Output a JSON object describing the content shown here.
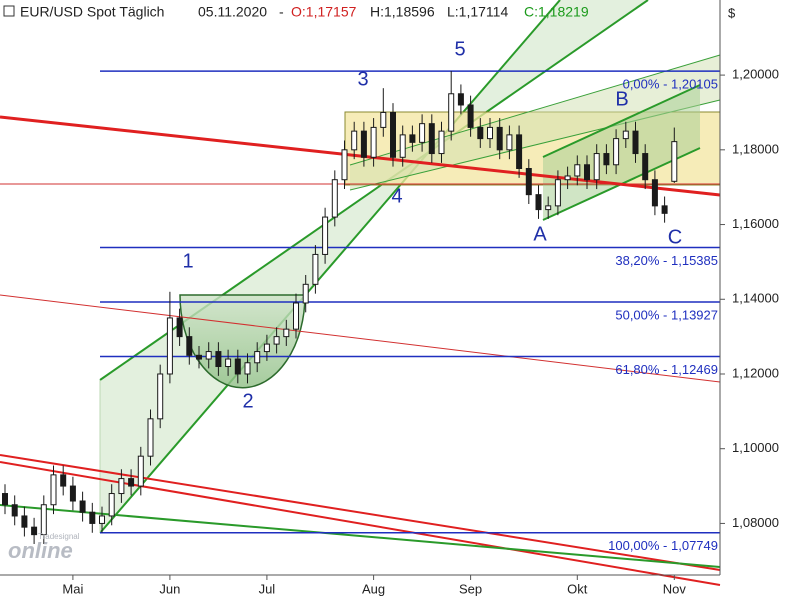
{
  "chart_data": {
    "type": "candlestick",
    "title": "EUR/USD Spot Täglich",
    "date": "05.11.2020",
    "quote_labels": [
      "O:1,17157",
      "H:1,18596",
      "L:1,17114",
      "C:1,18219"
    ],
    "currency": "$",
    "watermark": [
      "Tradesignal",
      "online"
    ],
    "up_color": "#ffffff",
    "down_color": "#1a1a1a",
    "fib_color": "#1f2fbf",
    "wave_color": "#1f2fa8",
    "categories": [
      null,
      null,
      null,
      null,
      null,
      null,
      null,
      "Mai",
      null,
      null,
      null,
      null,
      null,
      null,
      null,
      null,
      null,
      "Jun",
      null,
      null,
      null,
      null,
      null,
      null,
      null,
      null,
      null,
      "Jul",
      null,
      null,
      null,
      null,
      null,
      null,
      null,
      null,
      null,
      null,
      "Aug",
      null,
      null,
      null,
      null,
      null,
      null,
      null,
      null,
      null,
      "Sep",
      null,
      null,
      null,
      null,
      null,
      null,
      null,
      null,
      null,
      null,
      "Okt",
      null,
      null,
      null,
      null,
      null,
      null,
      null,
      null,
      null,
      "Nov"
    ],
    "open": [
      1.088,
      1.085,
      1.082,
      1.079,
      1.077,
      1.085,
      1.093,
      1.09,
      1.086,
      1.083,
      1.08,
      1.082,
      1.088,
      1.092,
      1.09,
      1.098,
      1.108,
      1.12,
      1.135,
      1.13,
      1.125,
      1.124,
      1.126,
      1.122,
      1.124,
      1.12,
      1.123,
      1.126,
      1.128,
      1.13,
      1.132,
      1.139,
      1.144,
      1.152,
      1.162,
      1.172,
      1.18,
      1.185,
      1.178,
      1.186,
      1.19,
      1.178,
      1.184,
      1.182,
      1.187,
      1.179,
      1.185,
      1.195,
      1.192,
      1.186,
      1.183,
      1.186,
      1.18,
      1.184,
      1.175,
      1.168,
      1.164,
      1.165,
      1.172,
      1.173,
      1.176,
      1.172,
      1.179,
      1.176,
      1.183,
      1.185,
      1.179,
      1.172,
      1.165,
      1.17157
    ],
    "high": [
      1.0905,
      1.0875,
      1.0845,
      1.0815,
      1.0875,
      1.0955,
      1.0955,
      1.0925,
      1.0885,
      1.0855,
      1.0845,
      1.0905,
      1.0945,
      1.0945,
      1.1005,
      1.1105,
      1.1225,
      1.142,
      1.1375,
      1.1325,
      1.1275,
      1.1285,
      1.1285,
      1.1265,
      1.1265,
      1.1255,
      1.1285,
      1.1305,
      1.1325,
      1.1345,
      1.1415,
      1.1465,
      1.1545,
      1.1645,
      1.1745,
      1.1825,
      1.1875,
      1.1875,
      1.1885,
      1.1965,
      1.1925,
      1.1865,
      1.1865,
      1.1895,
      1.1895,
      1.1875,
      1.2011,
      1.1975,
      1.1945,
      1.1885,
      1.1885,
      1.1885,
      1.1865,
      1.1865,
      1.1775,
      1.1705,
      1.1675,
      1.1745,
      1.1755,
      1.1785,
      1.1785,
      1.1815,
      1.1815,
      1.1855,
      1.1875,
      1.1875,
      1.1815,
      1.1745,
      1.1675,
      1.18596
    ],
    "low": [
      1.0825,
      1.0795,
      1.0765,
      1.0745,
      1.0745,
      1.0825,
      1.0875,
      1.0835,
      1.0805,
      1.0775,
      1.0775,
      1.0795,
      1.0855,
      1.0875,
      1.0875,
      1.0955,
      1.1055,
      1.1175,
      1.1275,
      1.1225,
      1.1215,
      1.1215,
      1.1195,
      1.1195,
      1.1175,
      1.1175,
      1.1205,
      1.1235,
      1.1255,
      1.1275,
      1.1295,
      1.1365,
      1.1415,
      1.1495,
      1.1595,
      1.1695,
      1.1775,
      1.1755,
      1.1755,
      1.1835,
      1.1755,
      1.1755,
      1.1795,
      1.1795,
      1.1765,
      1.1765,
      1.1825,
      1.1895,
      1.1835,
      1.1805,
      1.1805,
      1.1775,
      1.1775,
      1.1725,
      1.1655,
      1.1615,
      1.1615,
      1.1625,
      1.1695,
      1.1705,
      1.1695,
      1.1695,
      1.1735,
      1.1735,
      1.1805,
      1.1765,
      1.1695,
      1.1625,
      1.1605,
      1.17114
    ],
    "close": [
      1.085,
      1.082,
      1.079,
      1.077,
      1.085,
      1.093,
      1.09,
      1.086,
      1.083,
      1.08,
      1.082,
      1.088,
      1.092,
      1.09,
      1.098,
      1.108,
      1.12,
      1.135,
      1.13,
      1.125,
      1.124,
      1.126,
      1.122,
      1.124,
      1.12,
      1.123,
      1.126,
      1.128,
      1.13,
      1.132,
      1.139,
      1.144,
      1.152,
      1.162,
      1.172,
      1.18,
      1.185,
      1.178,
      1.186,
      1.19,
      1.178,
      1.184,
      1.182,
      1.187,
      1.179,
      1.185,
      1.195,
      1.192,
      1.186,
      1.183,
      1.186,
      1.18,
      1.184,
      1.175,
      1.168,
      1.164,
      1.165,
      1.172,
      1.173,
      1.176,
      1.172,
      1.179,
      1.176,
      1.183,
      1.185,
      1.179,
      1.172,
      1.165,
      1.163,
      1.18219
    ],
    "ylim": [
      1.067,
      1.2201
    ],
    "yticks": [
      {
        "value": 1.08,
        "label": "1,08000"
      },
      {
        "value": 1.1,
        "label": "1,10000"
      },
      {
        "value": 1.12,
        "label": "1,12000"
      },
      {
        "value": 1.14,
        "label": "1,14000"
      },
      {
        "value": 1.16,
        "label": "1,16000"
      },
      {
        "value": 1.18,
        "label": "1,18000"
      },
      {
        "value": 1.2,
        "label": "1,20000"
      }
    ],
    "fib_levels": [
      {
        "value": 1.20105,
        "label": "0,00% - 1,20105"
      },
      {
        "value": 1.15385,
        "label": "38,20% - 1,15385"
      },
      {
        "value": 1.13927,
        "label": "50,00% - 1,13927"
      },
      {
        "value": 1.12469,
        "label": "61,80% - 1,12469"
      },
      {
        "value": 1.07749,
        "label": "100,00% - 1,07749"
      }
    ],
    "wave_labels": [
      "1",
      "2",
      "3",
      "4",
      "5",
      "A",
      "B",
      "C"
    ]
  }
}
